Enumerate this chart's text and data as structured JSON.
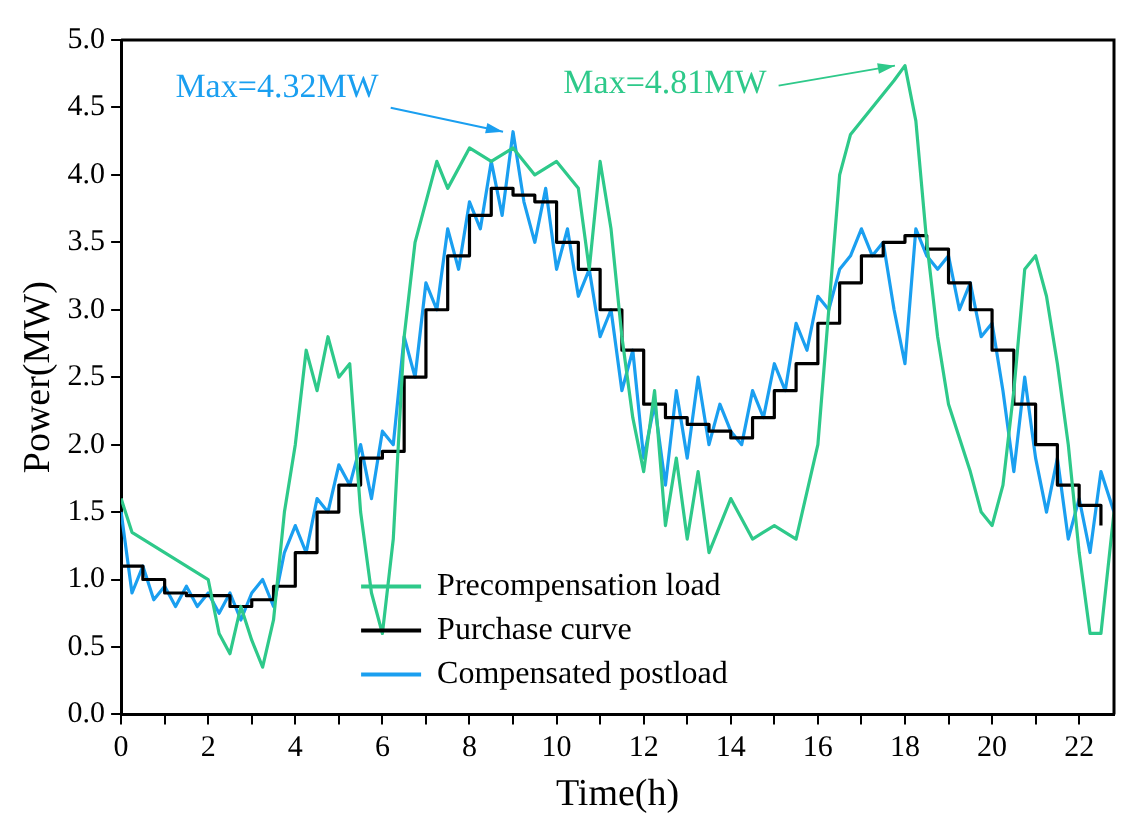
{
  "chart_data": {
    "type": "line",
    "xlabel": "Time(h)",
    "ylabel": "Power(MW)",
    "xlim": [
      0,
      22.8
    ],
    "xticks": [
      0,
      {
        "value": 1,
        "label": null
      },
      2,
      {
        "value": 3,
        "label": null
      },
      4,
      {
        "value": 5,
        "label": null
      },
      6,
      {
        "value": 7,
        "label": null
      },
      8,
      {
        "value": 9,
        "label": null
      },
      10,
      {
        "value": 11,
        "label": null
      },
      12,
      {
        "value": 13,
        "label": null
      },
      14,
      {
        "value": 15,
        "label": null
      },
      16,
      {
        "value": 17,
        "label": null
      },
      18,
      {
        "value": 19,
        "label": null
      },
      20,
      {
        "value": 21,
        "label": null
      },
      22
    ],
    "ylim": [
      0,
      5
    ],
    "yticks": [
      {
        "value": 0,
        "label": "0.0"
      },
      {
        "value": 0.5,
        "label": "0.5"
      },
      {
        "value": 1,
        "label": "1.0"
      },
      {
        "value": 1.5,
        "label": "1.5"
      },
      {
        "value": 2,
        "label": "2.0"
      },
      {
        "value": 2.5,
        "label": "2.5"
      },
      {
        "value": 3,
        "label": "3.0"
      },
      {
        "value": 3.5,
        "label": "3.5"
      },
      {
        "value": 4,
        "label": "4.0"
      },
      {
        "value": 4.5,
        "label": "4.5"
      },
      {
        "value": 5,
        "label": "5.0"
      }
    ],
    "grid": false,
    "legend": "bottom left",
    "series": [
      {
        "name": "Precompensation load",
        "color": "#2ec98a",
        "type": "line",
        "x": [
          0,
          0.25,
          0.5,
          1,
          1.5,
          2,
          2.25,
          2.5,
          2.75,
          3,
          3.25,
          3.5,
          3.75,
          4,
          4.25,
          4.5,
          4.75,
          5,
          5.25,
          5.5,
          5.75,
          6,
          6.25,
          6.5,
          6.75,
          7,
          7.25,
          7.5,
          8,
          8.5,
          9,
          9.5,
          10,
          10.5,
          10.75,
          11,
          11.25,
          11.5,
          11.75,
          12,
          12.25,
          12.5,
          12.75,
          13,
          13.25,
          13.5,
          14,
          14.5,
          15,
          15.5,
          16,
          16.25,
          16.5,
          16.75,
          17,
          17.5,
          17.75,
          18,
          18.25,
          18.5,
          18.75,
          19,
          19.5,
          19.75,
          20,
          20.25,
          20.5,
          20.75,
          21,
          21.25,
          21.5,
          21.75,
          22,
          22.25,
          22.5,
          22.8
        ],
        "values": [
          1.6,
          1.35,
          1.3,
          1.2,
          1.1,
          1.0,
          0.6,
          0.45,
          0.8,
          0.55,
          0.35,
          0.7,
          1.5,
          2.0,
          2.7,
          2.4,
          2.8,
          2.5,
          2.6,
          1.5,
          0.9,
          0.6,
          1.3,
          2.8,
          3.5,
          3.8,
          4.1,
          3.9,
          4.2,
          4.1,
          4.2,
          4.0,
          4.1,
          3.9,
          3.3,
          4.1,
          3.6,
          2.8,
          2.2,
          1.8,
          2.4,
          1.4,
          1.9,
          1.3,
          1.8,
          1.2,
          1.6,
          1.3,
          1.4,
          1.3,
          2.0,
          3.0,
          4.0,
          4.3,
          4.4,
          4.6,
          4.7,
          4.81,
          4.4,
          3.5,
          2.8,
          2.3,
          1.8,
          1.5,
          1.4,
          1.7,
          2.4,
          3.3,
          3.4,
          3.1,
          2.6,
          2.0,
          1.2,
          0.6,
          0.6,
          1.5
        ]
      },
      {
        "name": "Purchase curve",
        "color": "#000000",
        "type": "step",
        "x": [
          0,
          0.5,
          1,
          1.5,
          2,
          2.5,
          3,
          3.5,
          4,
          4.5,
          5,
          5.5,
          6,
          6.5,
          7,
          7.5,
          8,
          8.5,
          9,
          9.5,
          10,
          10.5,
          11,
          11.5,
          12,
          12.5,
          13,
          13.5,
          14,
          14.5,
          15,
          15.5,
          16,
          16.5,
          17,
          17.5,
          18,
          18.5,
          19,
          19.5,
          20,
          20.5,
          21,
          21.5,
          22,
          22.5
        ],
        "values": [
          1.1,
          1.0,
          0.9,
          0.88,
          0.88,
          0.8,
          0.85,
          0.95,
          1.2,
          1.5,
          1.7,
          1.9,
          1.95,
          2.5,
          3.0,
          3.4,
          3.7,
          3.9,
          3.85,
          3.8,
          3.5,
          3.3,
          3.0,
          2.7,
          2.3,
          2.2,
          2.15,
          2.1,
          2.05,
          2.2,
          2.4,
          2.6,
          2.9,
          3.2,
          3.4,
          3.5,
          3.55,
          3.45,
          3.2,
          3.0,
          2.7,
          2.3,
          2.0,
          1.7,
          1.55,
          1.4
        ]
      },
      {
        "name": "Compensated postload",
        "color": "#1a9ff0",
        "type": "line",
        "x": [
          0,
          0.25,
          0.5,
          0.75,
          1,
          1.25,
          1.5,
          1.75,
          2,
          2.25,
          2.5,
          2.75,
          3,
          3.25,
          3.5,
          3.75,
          4,
          4.25,
          4.5,
          4.75,
          5,
          5.25,
          5.5,
          5.75,
          6,
          6.25,
          6.5,
          6.75,
          7,
          7.25,
          7.5,
          7.75,
          8,
          8.25,
          8.5,
          8.75,
          9,
          9.25,
          9.5,
          9.75,
          10,
          10.25,
          10.5,
          10.75,
          11,
          11.25,
          11.5,
          11.75,
          12,
          12.25,
          12.5,
          12.75,
          13,
          13.25,
          13.5,
          13.75,
          14,
          14.25,
          14.5,
          14.75,
          15,
          15.25,
          15.5,
          15.75,
          16,
          16.25,
          16.5,
          16.75,
          17,
          17.25,
          17.5,
          17.75,
          18,
          18.25,
          18.5,
          18.75,
          19,
          19.25,
          19.5,
          19.75,
          20,
          20.25,
          20.5,
          20.75,
          21,
          21.25,
          21.5,
          21.75,
          22,
          22.25,
          22.5,
          22.8
        ],
        "values": [
          1.5,
          0.9,
          1.1,
          0.85,
          0.95,
          0.8,
          0.95,
          0.8,
          0.9,
          0.75,
          0.9,
          0.7,
          0.9,
          1.0,
          0.8,
          1.2,
          1.4,
          1.2,
          1.6,
          1.5,
          1.85,
          1.7,
          2.0,
          1.6,
          2.1,
          2.0,
          2.8,
          2.5,
          3.2,
          3.0,
          3.6,
          3.3,
          3.8,
          3.6,
          4.1,
          3.7,
          4.32,
          3.8,
          3.5,
          3.9,
          3.3,
          3.6,
          3.1,
          3.3,
          2.8,
          3.0,
          2.4,
          2.7,
          1.9,
          2.3,
          1.7,
          2.4,
          1.9,
          2.5,
          2.0,
          2.3,
          2.1,
          2.0,
          2.4,
          2.2,
          2.6,
          2.4,
          2.9,
          2.7,
          3.1,
          3.0,
          3.3,
          3.4,
          3.6,
          3.4,
          3.5,
          3.0,
          2.6,
          3.6,
          3.4,
          3.3,
          3.4,
          3.0,
          3.2,
          2.8,
          2.9,
          2.4,
          1.8,
          2.5,
          1.9,
          1.5,
          1.9,
          1.3,
          1.6,
          1.2,
          1.8,
          1.5
        ]
      }
    ],
    "annotations": [
      {
        "text": "Max=4.32MW",
        "x": 9,
        "y": 4.32
      },
      {
        "text": "Max=4.81MW",
        "x": 18,
        "y": 4.81
      }
    ]
  }
}
